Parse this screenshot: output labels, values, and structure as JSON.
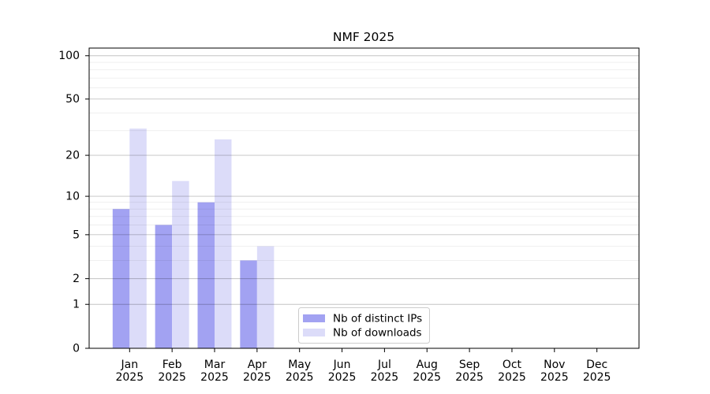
{
  "chart_data": {
    "type": "bar",
    "title": "NMF 2025",
    "categories": [
      "Jan",
      "Feb",
      "Mar",
      "Apr",
      "May",
      "Jun",
      "Jul",
      "Aug",
      "Sep",
      "Oct",
      "Nov",
      "Dec"
    ],
    "category_sub_label": "2025",
    "series": [
      {
        "name": "Nb of distinct IPs",
        "color": "#a2a2f2",
        "values": [
          8,
          6,
          9,
          3,
          0,
          0,
          0,
          0,
          0,
          0,
          0,
          0
        ]
      },
      {
        "name": "Nb of downloads",
        "color": "#dcdcf9",
        "values": [
          31,
          13,
          26,
          4,
          0,
          0,
          0,
          0,
          0,
          0,
          0,
          0
        ]
      }
    ],
    "xlabel": "",
    "ylabel": "",
    "yscale": "log(1+y)",
    "y_major_ticks": [
      0,
      1,
      2,
      5,
      10,
      20,
      50,
      100
    ],
    "y_minor_ticks": [
      3,
      4,
      6,
      7,
      8,
      9,
      30,
      40,
      60,
      70,
      80,
      90
    ],
    "ylim": [
      0,
      113
    ],
    "grid": "horizontal major and minor gridlines",
    "legend_position": "lower center"
  },
  "colors": {
    "background": "#ffffff",
    "ips_bar": "#a2a2f2",
    "downloads_bar": "#dcdcf9",
    "grid_major": "rgba(0,0,0,0.24)",
    "grid_minor": "rgba(0,0,0,0.08)",
    "axis": "#000000",
    "legend_border": "#cccccc"
  }
}
